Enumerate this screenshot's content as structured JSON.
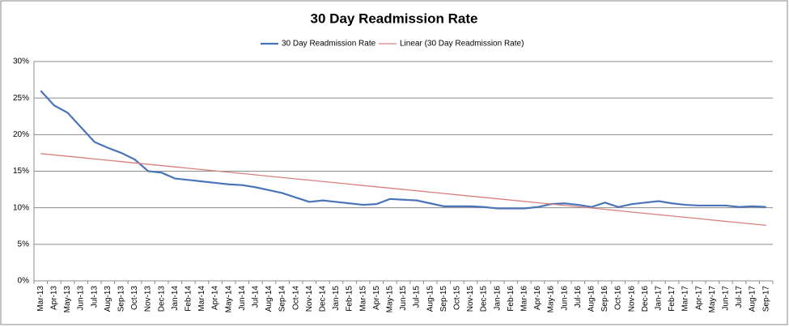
{
  "chart_data": {
    "type": "line",
    "title": "30 Day Readmission Rate",
    "categories": [
      "Mar-13",
      "Apr-13",
      "May-13",
      "Jun-13",
      "Jul-13",
      "Aug-13",
      "Sep-13",
      "Oct-13",
      "Nov-13",
      "Dec-13",
      "Jan-14",
      "Feb-14",
      "Mar-14",
      "Apr-14",
      "May-14",
      "Jun-14",
      "Jul-14",
      "Aug-14",
      "Sep-14",
      "Oct-14",
      "Nov-14",
      "Dec-14",
      "Jan-15",
      "Feb-15",
      "Mar-15",
      "Apr-15",
      "May-15",
      "Jun-15",
      "Jul-15",
      "Aug-15",
      "Sep-15",
      "Oct-15",
      "Nov-15",
      "Dec-15",
      "Jan-16",
      "Feb-16",
      "Mar-16",
      "Apr-16",
      "May-16",
      "Jun-16",
      "Jul-16",
      "Aug-16",
      "Sep-16",
      "Oct-16",
      "Nov-16",
      "Dec-16",
      "Jan-17",
      "Feb-17",
      "Mar-17",
      "Apr-17",
      "May-17",
      "Jun-17",
      "Jul-17",
      "Aug-17",
      "Sep-17"
    ],
    "series": [
      {
        "name": "30 Day Readmission Rate",
        "color": "#4a74b8",
        "values": [
          26,
          24,
          23,
          21,
          19,
          18.2,
          17.5,
          16.6,
          15,
          14.8,
          14,
          13.8,
          13.6,
          13.4,
          13.2,
          13.1,
          12.8,
          12.4,
          12,
          11.4,
          10.8,
          11,
          10.8,
          10.6,
          10.4,
          10.5,
          11.2,
          11.1,
          11,
          10.6,
          10.2,
          10.2,
          10.2,
          10.1,
          9.9,
          9.9,
          9.9,
          10.1,
          10.5,
          10.6,
          10.4,
          10.1,
          10.7,
          10.1,
          10.5,
          10.7,
          10.9,
          10.6,
          10.4,
          10.3,
          10.3,
          10.3,
          10.1,
          10.2,
          10.1
        ]
      },
      {
        "name": "Linear (30 Day Readmission Rate)",
        "color": "#d9807f",
        "values": [
          17.4,
          17.22,
          17.04,
          16.86,
          16.67,
          16.49,
          16.31,
          16.13,
          15.95,
          15.77,
          15.59,
          15.4,
          15.22,
          15.04,
          14.86,
          14.68,
          14.5,
          14.31,
          14.13,
          13.95,
          13.77,
          13.59,
          13.41,
          13.23,
          13.04,
          12.86,
          12.68,
          12.5,
          12.32,
          12.14,
          11.96,
          11.77,
          11.59,
          11.41,
          11.23,
          11.05,
          10.87,
          10.68,
          10.5,
          10.32,
          10.14,
          9.96,
          9.78,
          9.6,
          9.41,
          9.23,
          9.05,
          8.87,
          8.69,
          8.51,
          8.32,
          8.14,
          7.96,
          7.78,
          7.6
        ]
      }
    ],
    "ylim": [
      0,
      30
    ],
    "yticks": [
      {
        "value": 0,
        "label": "0%"
      },
      {
        "value": 5,
        "label": "5%"
      },
      {
        "value": 10,
        "label": "10%"
      },
      {
        "value": 15,
        "label": "15%"
      },
      {
        "value": 20,
        "label": "20%"
      },
      {
        "value": 25,
        "label": "25%"
      },
      {
        "value": 30,
        "label": "30%"
      }
    ],
    "grid": true,
    "legend": "top"
  }
}
